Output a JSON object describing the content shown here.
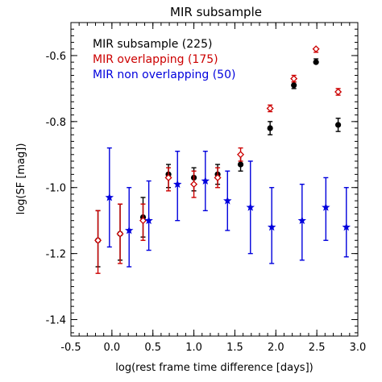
{
  "chart_data": {
    "type": "scatter",
    "title": "MIR subsample",
    "xlabel": "log(rest frame time difference [days])",
    "ylabel": "log(SF [mag])",
    "xlim": [
      -0.5,
      3.0
    ],
    "ylim": [
      -1.45,
      -0.5
    ],
    "xticks": [
      -0.5,
      0.0,
      0.5,
      1.0,
      1.5,
      2.0,
      2.5,
      3.0
    ],
    "xtick_labels": [
      "-0.5",
      "0.0",
      "0.5",
      "1.0",
      "1.5",
      "2.0",
      "2.5",
      "3.0"
    ],
    "yticks": [
      -1.4,
      -1.2,
      -1.0,
      -0.8,
      -0.6
    ],
    "ytick_labels": [
      "-1.4",
      "-1.2",
      "-1.0",
      "-0.8",
      "-0.6"
    ],
    "legend_position": "top-left",
    "grid": false,
    "series": [
      {
        "name": "MIR subsample (225)",
        "color": "#000000",
        "marker": "circle",
        "points": [
          {
            "x": -0.17,
            "y": -1.16,
            "ylo": -1.24,
            "yhi": -1.07
          },
          {
            "x": 0.1,
            "y": -1.14,
            "ylo": -1.22,
            "yhi": -1.05
          },
          {
            "x": 0.38,
            "y": -1.09,
            "ylo": -1.15,
            "yhi": -1.03
          },
          {
            "x": 0.69,
            "y": -0.96,
            "ylo": -1.0,
            "yhi": -0.93
          },
          {
            "x": 1.0,
            "y": -0.97,
            "ylo": -1.01,
            "yhi": -0.94
          },
          {
            "x": 1.29,
            "y": -0.96,
            "ylo": -0.99,
            "yhi": -0.93
          },
          {
            "x": 1.57,
            "y": -0.93,
            "ylo": -0.95,
            "yhi": -0.9
          },
          {
            "x": 1.93,
            "y": -0.82,
            "ylo": -0.84,
            "yhi": -0.8
          },
          {
            "x": 2.22,
            "y": -0.69,
            "ylo": -0.7,
            "yhi": -0.68
          },
          {
            "x": 2.49,
            "y": -0.62,
            "ylo": -0.62,
            "yhi": -0.61
          },
          {
            "x": 2.76,
            "y": -0.81,
            "ylo": -0.83,
            "yhi": -0.79
          }
        ]
      },
      {
        "name": "MIR overlapping (175)",
        "color": "#cc0000",
        "marker": "diamond",
        "points": [
          {
            "x": -0.17,
            "y": -1.16,
            "ylo": -1.26,
            "yhi": -1.07
          },
          {
            "x": 0.1,
            "y": -1.14,
            "ylo": -1.23,
            "yhi": -1.05
          },
          {
            "x": 0.38,
            "y": -1.1,
            "ylo": -1.16,
            "yhi": -1.05
          },
          {
            "x": 0.69,
            "y": -0.97,
            "ylo": -1.01,
            "yhi": -0.94
          },
          {
            "x": 1.0,
            "y": -0.99,
            "ylo": -1.03,
            "yhi": -0.95
          },
          {
            "x": 1.29,
            "y": -0.97,
            "ylo": -1.0,
            "yhi": -0.94
          },
          {
            "x": 1.57,
            "y": -0.9,
            "ylo": -0.92,
            "yhi": -0.88
          },
          {
            "x": 1.93,
            "y": -0.76,
            "ylo": -0.77,
            "yhi": -0.75
          },
          {
            "x": 2.22,
            "y": -0.67,
            "ylo": -0.68,
            "yhi": -0.66
          },
          {
            "x": 2.49,
            "y": -0.58,
            "ylo": -0.59,
            "yhi": -0.58
          },
          {
            "x": 2.76,
            "y": -0.71,
            "ylo": -0.72,
            "yhi": -0.7
          }
        ]
      },
      {
        "name": "MIR non overlapping (50)",
        "color": "#0000dd",
        "marker": "star",
        "points": [
          {
            "x": -0.03,
            "y": -1.03,
            "ylo": -1.18,
            "yhi": -0.88
          },
          {
            "x": 0.21,
            "y": -1.13,
            "ylo": -1.24,
            "yhi": -1.0
          },
          {
            "x": 0.45,
            "y": -1.1,
            "ylo": -1.19,
            "yhi": -0.98
          },
          {
            "x": 0.8,
            "y": -0.99,
            "ylo": -1.1,
            "yhi": -0.89
          },
          {
            "x": 1.14,
            "y": -0.98,
            "ylo": -1.07,
            "yhi": -0.89
          },
          {
            "x": 1.41,
            "y": -1.04,
            "ylo": -1.13,
            "yhi": -0.95
          },
          {
            "x": 1.69,
            "y": -1.06,
            "ylo": -1.2,
            "yhi": -0.92
          },
          {
            "x": 1.95,
            "y": -1.12,
            "ylo": -1.23,
            "yhi": -1.0
          },
          {
            "x": 2.32,
            "y": -1.1,
            "ylo": -1.22,
            "yhi": -0.99
          },
          {
            "x": 2.61,
            "y": -1.06,
            "ylo": -1.16,
            "yhi": -0.97
          },
          {
            "x": 2.86,
            "y": -1.12,
            "ylo": -1.21,
            "yhi": -1.0
          }
        ]
      }
    ]
  }
}
